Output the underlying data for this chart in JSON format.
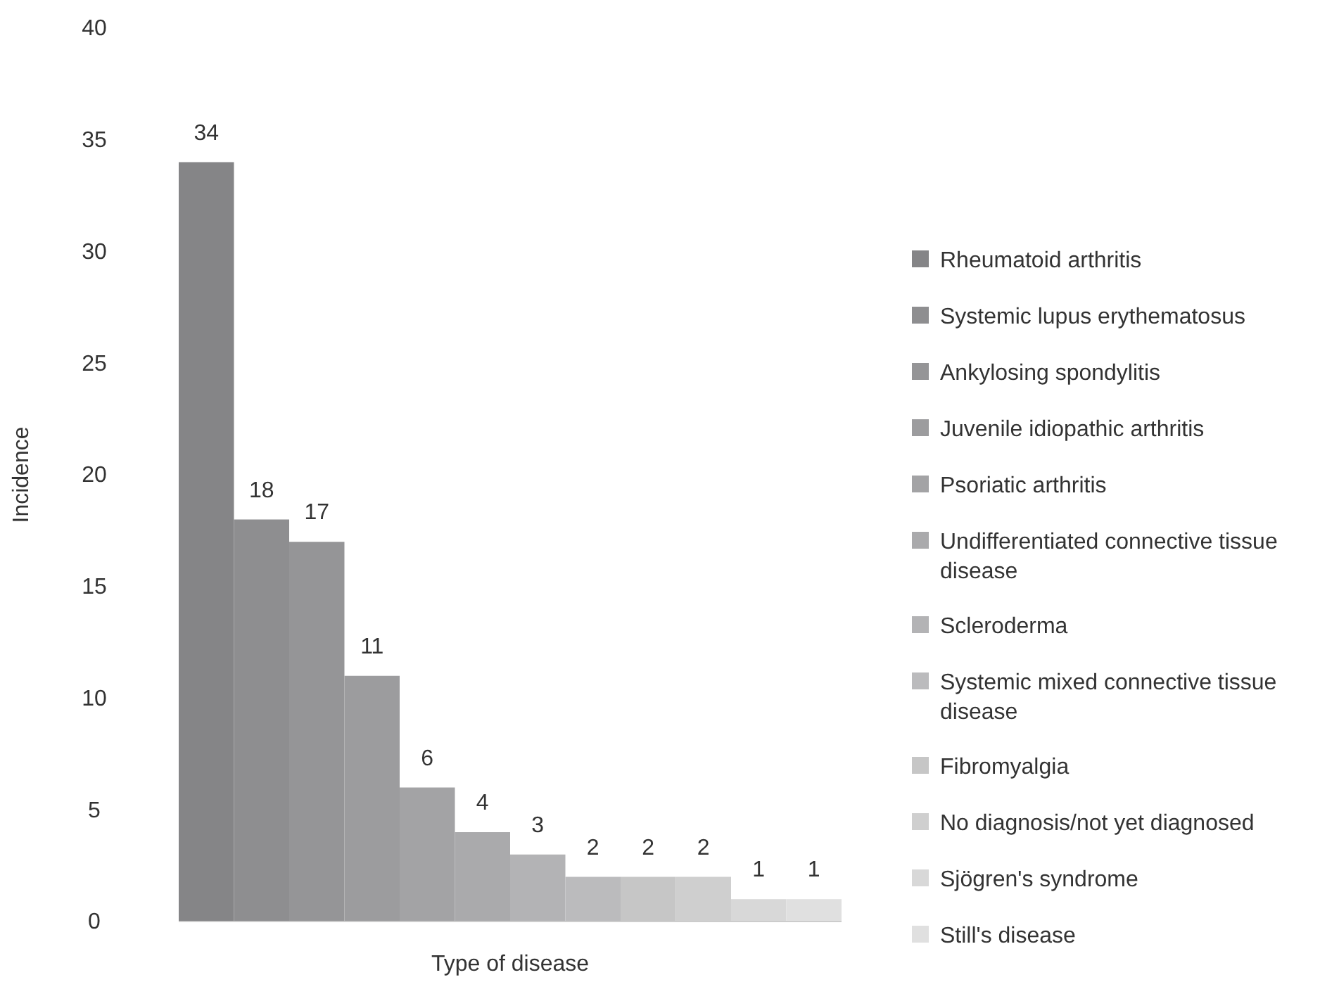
{
  "chart_data": {
    "type": "bar",
    "xlabel": "Type of disease",
    "ylabel": "Incidence",
    "categories": [
      null
    ],
    "series": [
      {
        "name": "Rheumatoid arthritis",
        "color": "#858587",
        "values": [
          34
        ]
      },
      {
        "name": "Systemic lupus erythematosus",
        "color": "#8e8e90",
        "values": [
          18
        ]
      },
      {
        "name": "Ankylosing spondylitis",
        "color": "#959597",
        "values": [
          17
        ]
      },
      {
        "name": "Juvenile idiopathic arthritis",
        "color": "#9c9c9e",
        "values": [
          11
        ]
      },
      {
        "name": "Psoriatic arthritis",
        "color": "#a3a3a5",
        "values": [
          6
        ]
      },
      {
        "name": "Undifferentiated connective tissue disease",
        "color": "#aaaaac",
        "values": [
          4
        ]
      },
      {
        "name": "Scleroderma",
        "color": "#b3b3b5",
        "values": [
          3
        ]
      },
      {
        "name": "Systemic mixed connective tissue disease",
        "color": "#bbbbbd",
        "values": [
          2
        ]
      },
      {
        "name": "Fibromyalgia",
        "color": "#c6c6c6",
        "values": [
          2
        ]
      },
      {
        "name": "No diagnosis/not yet diagnosed",
        "color": "#cfcfcf",
        "values": [
          2
        ]
      },
      {
        "name": "Sjögren's syndrome",
        "color": "#d8d8d8",
        "values": [
          1
        ]
      },
      {
        "name": "Still's disease",
        "color": "#e0e0e0",
        "values": [
          1
        ]
      }
    ],
    "ylim": [
      0,
      40
    ],
    "yticks": [
      0,
      5,
      10,
      15,
      20,
      25,
      30,
      35,
      40
    ],
    "data_labels": true,
    "grid": false,
    "legend": "right"
  }
}
